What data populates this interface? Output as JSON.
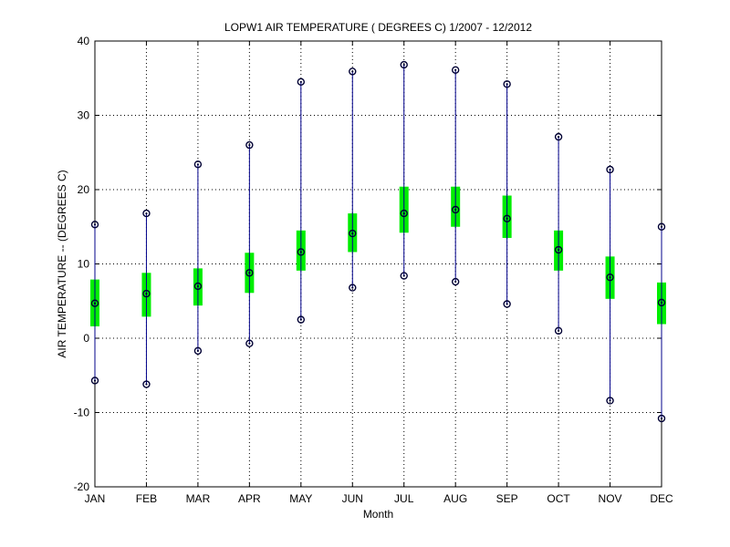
{
  "chart_data": {
    "type": "box",
    "title": "LOPW1  AIR TEMPERATURE ( DEGREES C) 1/2007 - 12/2012",
    "xlabel": "Month",
    "ylabel": "AIR TEMPERATURE -- (DEGREES C)",
    "ylim": [
      -20,
      40
    ],
    "yticks": [
      -20,
      -10,
      0,
      10,
      20,
      30,
      40
    ],
    "grid": true,
    "categories": [
      "JAN",
      "FEB",
      "MAR",
      "APR",
      "MAY",
      "JUN",
      "JUL",
      "AUG",
      "SEP",
      "OCT",
      "NOV",
      "DEC"
    ],
    "max": [
      15.3,
      16.8,
      23.4,
      26.0,
      34.5,
      35.9,
      36.8,
      36.1,
      34.2,
      27.1,
      22.7,
      15.0
    ],
    "q3": [
      7.9,
      8.8,
      9.4,
      11.5,
      14.5,
      16.8,
      20.4,
      20.4,
      19.2,
      14.5,
      11.0,
      7.5
    ],
    "median": [
      4.7,
      6.0,
      7.0,
      8.8,
      11.6,
      14.1,
      16.8,
      17.3,
      16.1,
      11.9,
      8.2,
      4.8
    ],
    "q1": [
      1.6,
      2.9,
      4.4,
      6.1,
      9.1,
      11.6,
      14.2,
      15.0,
      13.5,
      9.1,
      5.3,
      1.9
    ],
    "min": [
      -5.7,
      -6.2,
      -1.7,
      -0.7,
      2.5,
      6.8,
      8.4,
      7.6,
      4.6,
      1.0,
      -8.4,
      -10.8
    ],
    "colors": {
      "box": "#00ee00",
      "whisker": "#00008b",
      "marker": "#000033"
    }
  }
}
